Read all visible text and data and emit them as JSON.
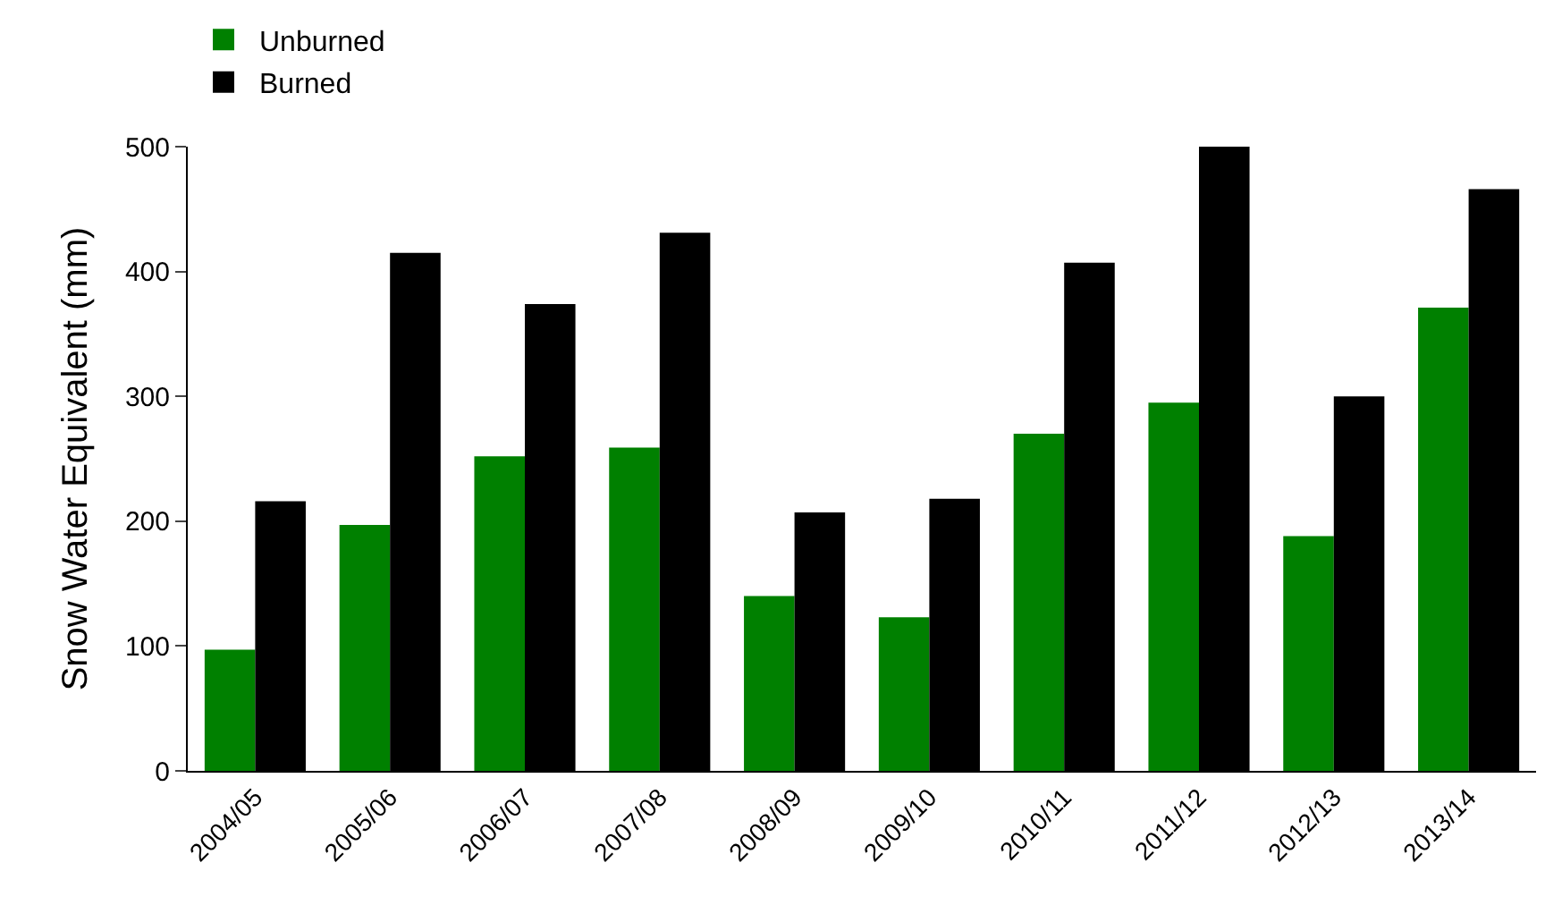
{
  "chart_data": {
    "type": "bar",
    "ylabel": "Snow Water Equivalent (mm)",
    "categories": [
      "2004/05",
      "2005/06",
      "2006/07",
      "2007/08",
      "2008/09",
      "2009/10",
      "2010/11",
      "2011/12",
      "2012/13",
      "2013/14"
    ],
    "series": [
      {
        "name": "Unburned",
        "color": "#008000",
        "values": [
          97,
          197,
          252,
          259,
          140,
          123,
          270,
          295,
          188,
          371
        ]
      },
      {
        "name": "Burned",
        "color": "#000000",
        "values": [
          216,
          415,
          374,
          431,
          207,
          218,
          407,
          500,
          300,
          466
        ]
      }
    ],
    "ylim": [
      0,
      500
    ],
    "yticks": [
      0,
      100,
      200,
      300,
      400,
      500
    ],
    "legend": "top left"
  }
}
